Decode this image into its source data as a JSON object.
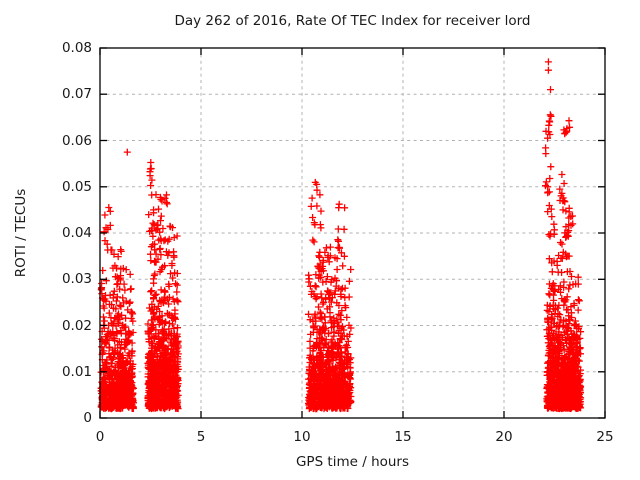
{
  "figure": {
    "background": "#ffffff",
    "text_color": "#1a1a1a"
  },
  "chart_data": {
    "type": "scatter",
    "title": "Day 262 of 2016, Rate Of TEC Index for receiver lord",
    "xlabel": "GPS time / hours",
    "ylabel": "ROTI / TECUs",
    "xlim": [
      0,
      25
    ],
    "ylim": [
      0,
      0.08
    ],
    "xticks": [
      0,
      5,
      10,
      15,
      20,
      25
    ],
    "yticks": [
      0,
      0.01,
      0.02,
      0.03,
      0.04,
      0.05,
      0.06,
      0.07,
      0.08
    ],
    "grid": true,
    "grid_color": "#b3b3b3",
    "legend": "none",
    "marker": {
      "shape": "plus",
      "color": "#ff0000",
      "size": 7,
      "stroke_width": 1.3
    },
    "seed": 20160262,
    "clusters": [
      {
        "name": "cluster-00h-02h",
        "x_range": [
          0.05,
          1.66
        ],
        "count": 640,
        "y_base": 0.002,
        "bulk": {
          "frac_low": 0.74,
          "mean_low": 0.0063,
          "mean_high": 0.0125,
          "y_cap": 0.0325
        },
        "spikes": [
          {
            "x": 0.45,
            "dx": 0.28,
            "y_range": [
              0.033,
              0.047
            ],
            "count": 13
          },
          {
            "x": 1.0,
            "dx": 0.3,
            "y_range": [
              0.029,
              0.037
            ],
            "count": 10
          },
          {
            "x": 0.18,
            "dx": 0.12,
            "y_range": [
              0.024,
              0.032
            ],
            "count": 10
          }
        ]
      },
      {
        "name": "cluster-02h-04h",
        "x_range": [
          2.37,
          3.88
        ],
        "count": 820,
        "y_base": 0.002,
        "bulk": {
          "frac_low": 0.62,
          "mean_low": 0.0066,
          "mean_high": 0.0155,
          "y_cap": 0.039
        },
        "spikes": [
          {
            "x": 2.5,
            "dx": 0.07,
            "y_range": [
              0.048,
              0.0555
            ],
            "count": 9
          },
          {
            "x": 2.7,
            "dx": 0.3,
            "y_range": [
              0.04,
              0.0455
            ],
            "count": 12
          },
          {
            "x": 3.05,
            "dx": 0.28,
            "y_range": [
              0.037,
              0.049
            ],
            "count": 14
          },
          {
            "x": 2.75,
            "dx": 0.3,
            "y_range": [
              0.03,
              0.042
            ],
            "count": 16
          },
          {
            "x": 3.62,
            "dx": 0.2,
            "y_range": [
              0.035,
              0.045
            ],
            "count": 8
          }
        ]
      },
      {
        "name": "cluster-10h-12h",
        "x_range": [
          10.32,
          12.42
        ],
        "count": 920,
        "y_base": 0.002,
        "bulk": {
          "frac_low": 0.7,
          "mean_low": 0.0069,
          "mean_high": 0.014,
          "y_cap": 0.0355
        },
        "spikes": [
          {
            "x": 10.7,
            "dx": 0.25,
            "y_range": [
              0.036,
              0.052
            ],
            "count": 15
          },
          {
            "x": 11.95,
            "dx": 0.18,
            "y_range": [
              0.034,
              0.047
            ],
            "count": 12
          },
          {
            "x": 11.1,
            "dx": 0.35,
            "y_range": [
              0.028,
              0.037
            ],
            "count": 14
          }
        ]
      },
      {
        "name": "cluster-22h-24h",
        "x_range": [
          22.12,
          23.8
        ],
        "count": 980,
        "y_base": 0.002,
        "bulk": {
          "frac_low": 0.72,
          "mean_low": 0.0067,
          "mean_high": 0.0132,
          "y_cap": 0.0355
        },
        "spikes": [
          {
            "x": 22.25,
            "dx": 0.1,
            "y_range": [
              0.0605,
              0.0665
            ],
            "count": 7
          },
          {
            "x": 23.1,
            "dx": 0.15,
            "y_range": [
              0.061,
              0.0655
            ],
            "count": 8
          },
          {
            "x": 22.2,
            "dx": 0.15,
            "y_range": [
              0.048,
              0.059
            ],
            "count": 10
          },
          {
            "x": 23.15,
            "dx": 0.3,
            "y_range": [
              0.04,
              0.047
            ],
            "count": 16
          },
          {
            "x": 22.9,
            "dx": 0.15,
            "y_range": [
              0.046,
              0.053
            ],
            "count": 8
          },
          {
            "x": 22.35,
            "dx": 0.2,
            "y_range": [
              0.038,
              0.047
            ],
            "count": 10
          },
          {
            "x": 23.0,
            "dx": 0.35,
            "y_range": [
              0.034,
              0.04
            ],
            "count": 10
          }
        ]
      }
    ],
    "outliers": [
      [
        1.35,
        0.0575
      ],
      [
        22.2,
        0.077
      ],
      [
        22.2,
        0.0752
      ],
      [
        22.3,
        0.071
      ],
      [
        22.08,
        0.062
      ],
      [
        22.16,
        0.0605
      ]
    ]
  }
}
